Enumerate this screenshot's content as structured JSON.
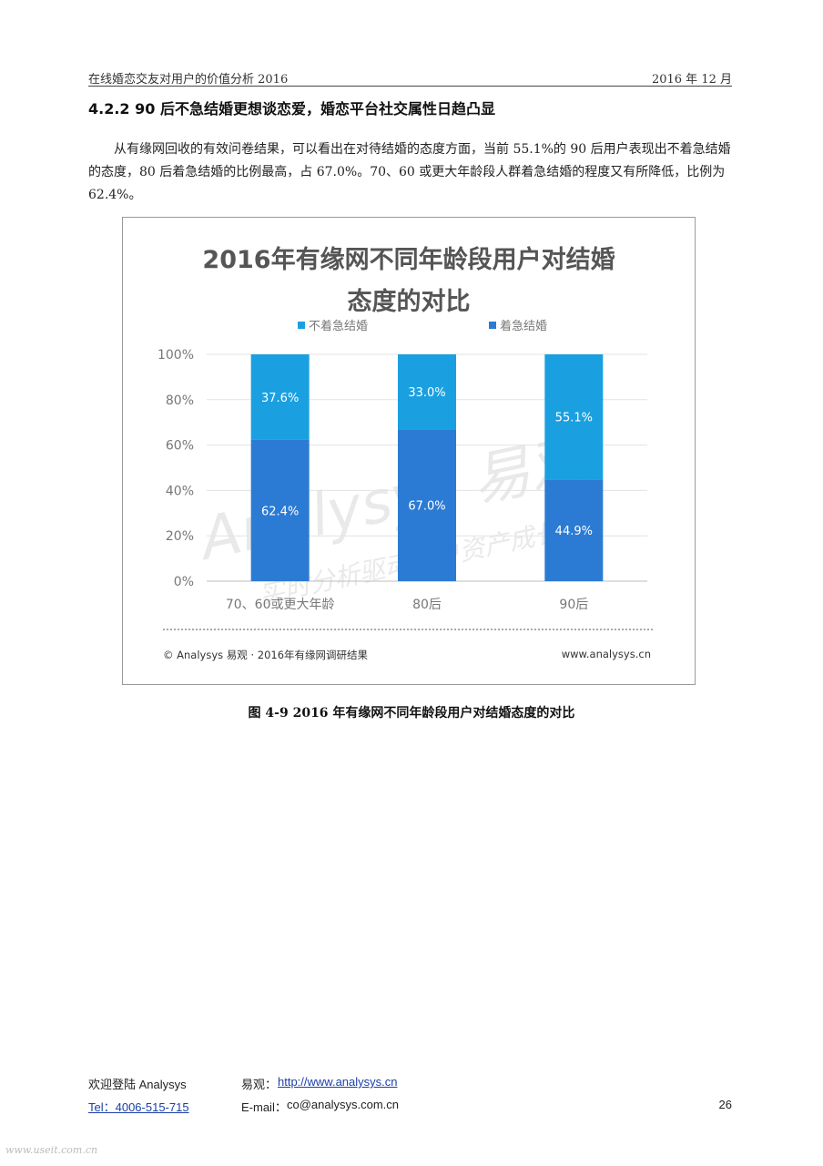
{
  "header": {
    "left": "在线婚恋交友对用户的价值分析 2016",
    "right": "2016 年 12 月"
  },
  "section": {
    "title": "4.2.2  90 后不急结婚更想谈恋爱，婚恋平台社交属性日趋凸显"
  },
  "paragraph": "从有缘网回收的有效问卷结果，可以看出在对待结婚的态度方面，当前 55.1%的 90 后用户表现出不着急结婚的态度，80 后着急结婚的比例最高，占 67.0%。70、60 或更大年龄段人群着急结婚的程度又有所降低，比例为 62.4%。",
  "chart_data": {
    "type": "bar",
    "stacked": true,
    "title_line1": "2016年有缘网不同年龄段用户对结婚",
    "title_line2": "态度的对比",
    "categories": [
      "70、60或更大年龄",
      "80后",
      "90后"
    ],
    "series": [
      {
        "name": "着急结婚",
        "values": [
          62.4,
          67.0,
          44.9
        ],
        "color": "#2b7bd4"
      },
      {
        "name": "不着急结婚",
        "values": [
          37.6,
          33.0,
          55.1
        ],
        "color": "#1aa0e0"
      }
    ],
    "legend_order": [
      "不着急结婚",
      "着急结婚"
    ],
    "y_ticks": [
      "0%",
      "20%",
      "40%",
      "60%",
      "80%",
      "100%"
    ],
    "ylim": [
      0,
      100
    ],
    "unit": "%",
    "source_left": "© Analysys 易观 · 2016年有缘网调研结果",
    "source_right": "www.analysys.cn",
    "watermark_brand": "Analysys 易观",
    "watermark_slogan": "实时分析驱动用户资产成长"
  },
  "caption": "图  4-9 2016 年有缘网不同年龄段用户对结婚态度的对比",
  "footer": {
    "welcome": "欢迎登陆 Analysys",
    "yiguan_label": "易观：",
    "yiguan_url": "http://www.analysys.cn",
    "tel": "Tel：4006-515-715",
    "email_label": "E-mail：",
    "email": "co@analysys.com.cn",
    "page_number": "26"
  },
  "site_watermark": "www.useit.com.cn"
}
